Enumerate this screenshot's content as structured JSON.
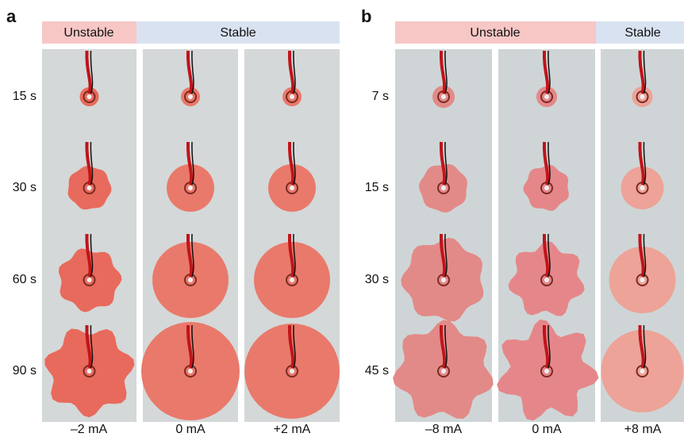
{
  "panels": [
    {
      "label": "a",
      "headers": [
        "Unstable",
        "Stable"
      ],
      "rows": [
        "15 s",
        "30 s",
        "60 s",
        "90 s"
      ],
      "columns": [
        "–2 mA",
        "0 mA",
        "+2 mA"
      ]
    },
    {
      "label": "b",
      "headers": [
        "Unstable",
        "Stable"
      ],
      "rows": [
        "7 s",
        "15 s",
        "30 s",
        "45 s"
      ],
      "columns": [
        "–8 mA",
        "0 mA",
        "+8 mA"
      ]
    }
  ]
}
